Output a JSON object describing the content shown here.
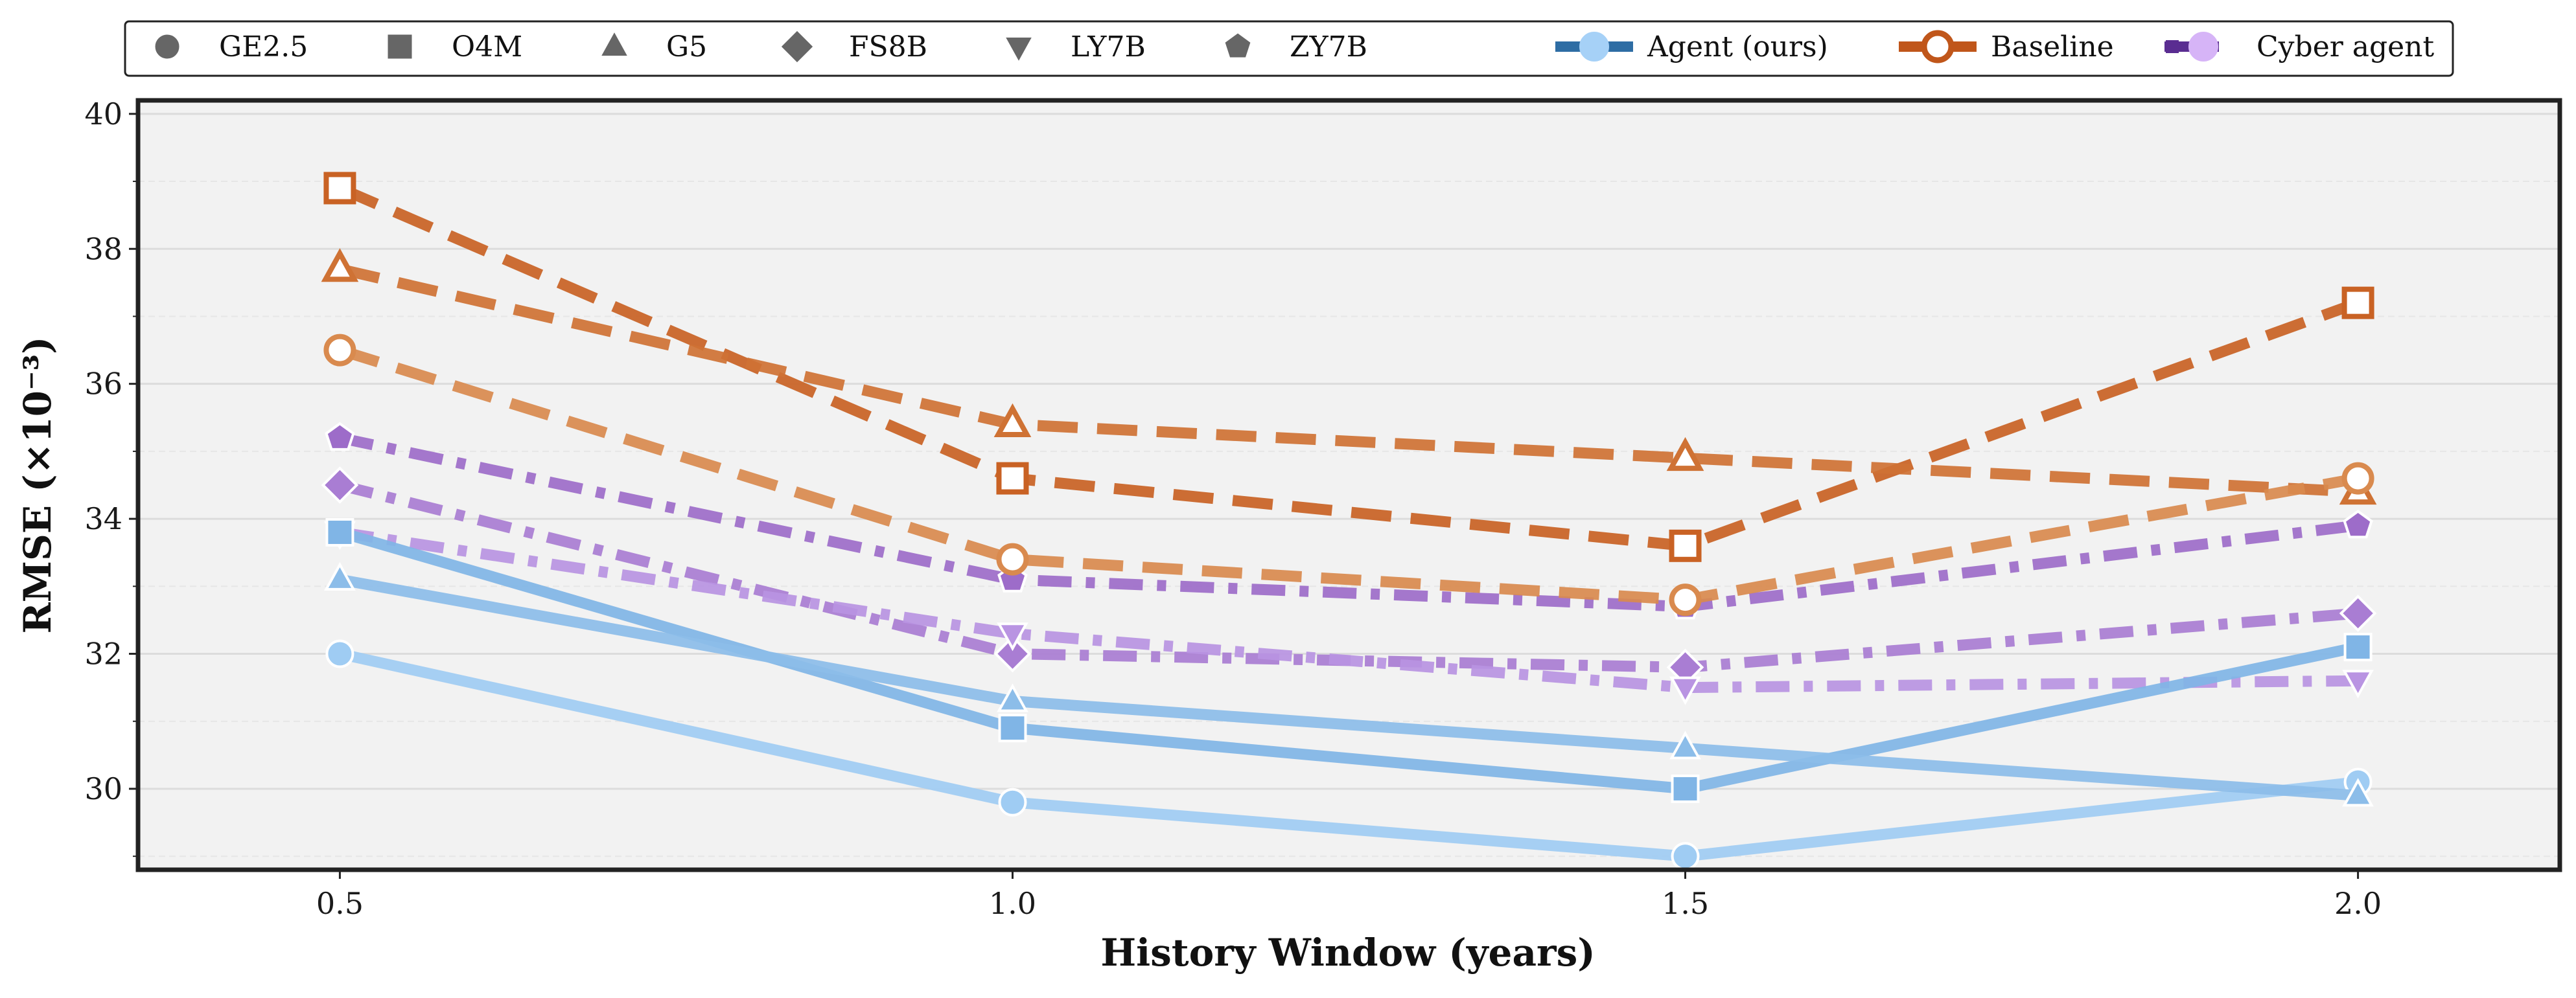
{
  "chart_data": {
    "type": "line",
    "title": "",
    "xlabel": "History Window (years)",
    "ylabel": "RMSE (×10⁻³)",
    "x": [
      0.5,
      1.0,
      1.5,
      2.0
    ],
    "x_ticks": [
      "0.5",
      "1.0",
      "1.5",
      "2.0"
    ],
    "xlim": [
      0.35,
      2.15
    ],
    "y_ticks": [
      "30",
      "32",
      "34",
      "36",
      "38",
      "40"
    ],
    "ylim": [
      28.8,
      40.2
    ],
    "grid": true,
    "legend_position": "top",
    "marker_legend": [
      {
        "label": "GE2.5",
        "marker": "circle"
      },
      {
        "label": "O4M",
        "marker": "square"
      },
      {
        "label": "G5",
        "marker": "triangle-up"
      },
      {
        "label": "FS8B",
        "marker": "diamond"
      },
      {
        "label": "LY7B",
        "marker": "triangle-down"
      },
      {
        "label": "ZY7B",
        "marker": "pentagon"
      }
    ],
    "method_legend": [
      {
        "label": "Agent (ours)",
        "color": "#2e6da4",
        "light": "#a6d1f7",
        "style": "solid"
      },
      {
        "label": "Baseline",
        "color": "#c0561a",
        "light": "#ffffff",
        "style": "dashed"
      },
      {
        "label": "Cyber agent",
        "color": "#5a2d91",
        "light": "#d6b4f7",
        "style": "dashdot"
      }
    ],
    "series": [
      {
        "method": "Agent (ours)",
        "model": "GE2.5",
        "marker": "circle",
        "color": "#9fccf3",
        "linestyle": "solid",
        "values": [
          32.0,
          29.8,
          29.0,
          30.1
        ]
      },
      {
        "method": "Agent (ours)",
        "model": "O4M",
        "marker": "square",
        "color": "#80b5e6",
        "linestyle": "solid",
        "values": [
          33.8,
          30.9,
          30.0,
          32.1
        ]
      },
      {
        "method": "Agent (ours)",
        "model": "G5",
        "marker": "triangle-up",
        "color": "#8cbde9",
        "linestyle": "solid",
        "values": [
          33.1,
          31.3,
          30.6,
          29.9
        ]
      },
      {
        "method": "Baseline",
        "model": "O4M",
        "marker": "square",
        "color": "#c96224",
        "linestyle": "dashed",
        "values": [
          38.9,
          34.6,
          33.6,
          37.2
        ]
      },
      {
        "method": "Baseline",
        "model": "G5",
        "marker": "triangle-up",
        "color": "#cf7234",
        "linestyle": "dashed",
        "values": [
          37.7,
          35.4,
          34.9,
          34.4
        ]
      },
      {
        "method": "Baseline",
        "model": "GE2.5",
        "marker": "circle",
        "color": "#d98a4e",
        "linestyle": "dashed",
        "values": [
          36.5,
          33.4,
          32.8,
          34.6
        ]
      },
      {
        "method": "Cyber agent",
        "model": "ZY7B",
        "marker": "pentagon",
        "color": "#9d6cc9",
        "linestyle": "dashdot",
        "values": [
          35.2,
          33.1,
          32.7,
          33.9
        ]
      },
      {
        "method": "Cyber agent",
        "model": "FS8B",
        "marker": "diamond",
        "color": "#a97dd3",
        "linestyle": "dashdot",
        "values": [
          34.5,
          32.0,
          31.8,
          32.6
        ]
      },
      {
        "method": "Cyber agent",
        "model": "LY7B",
        "marker": "triangle-down",
        "color": "#b994e2",
        "linestyle": "dashdot",
        "values": [
          33.8,
          32.3,
          31.5,
          31.6
        ]
      }
    ]
  }
}
